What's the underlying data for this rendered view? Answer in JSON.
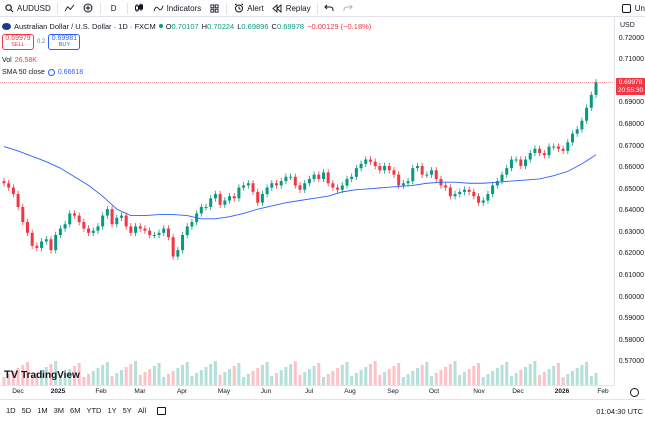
{
  "toolbar": {
    "symbol": "AUDUSD",
    "interval": "D",
    "indicators_label": "Indicators",
    "alert_label": "Alert",
    "replay_label": "Replay",
    "right_text": "Un"
  },
  "legend": {
    "title": "Australian Dollar / U.S. Dollar · 1D · FXCM",
    "open_k": "O",
    "open_v": "0.70107",
    "high_k": "H",
    "high_v": "0.70224",
    "low_k": "L",
    "low_v": "0.69896",
    "close_k": "C",
    "close_v": "0.69978",
    "change": "−0.00129 (−0.18%)",
    "sell_price": "0.69979",
    "sell_label": "SELL",
    "spread": "0.2",
    "buy_price": "0.69981",
    "buy_label": "BUY",
    "vol_label": "Vol",
    "vol_value": "26.58K",
    "sma_label": "SMA 50 close",
    "sma_value": "0.66618"
  },
  "price_axis": {
    "currency": "USD",
    "labels": [
      "0.72000",
      "0.71000",
      "0.70000",
      "0.69000",
      "0.68000",
      "0.67000",
      "0.66000",
      "0.65000",
      "0.64000",
      "0.63000",
      "0.62000",
      "0.61000",
      "0.60000",
      "0.59000",
      "0.58000",
      "0.57000"
    ],
    "last_price": "0.69978",
    "countdown": "20:55:30"
  },
  "time_axis": {
    "labels": [
      "Dec",
      "2025",
      "Feb",
      "Mar",
      "Apr",
      "May",
      "Jun",
      "Jul",
      "Aug",
      "Sep",
      "Oct",
      "Nov",
      "Dec",
      "2026",
      "Feb"
    ]
  },
  "bottom_bar": {
    "ranges": [
      "1D",
      "5D",
      "1M",
      "3M",
      "6M",
      "YTD",
      "1Y",
      "5Y",
      "All"
    ],
    "clock": "01:04:30 UTC"
  },
  "branding": {
    "logo_text": "TradingView"
  },
  "colors": {
    "up": "#089981",
    "down": "#f23645",
    "sma": "#2962ff",
    "accent": "#2962ff"
  },
  "chart_data": {
    "type": "line",
    "series": [
      {
        "name": "SMA 50 close",
        "values": [
          0.67,
          0.668,
          0.6655,
          0.663,
          0.66,
          0.656,
          0.652,
          0.647,
          0.641,
          0.638,
          0.638,
          0.6385,
          0.6385,
          0.638,
          0.6365,
          0.6365,
          0.6375,
          0.639,
          0.641,
          0.6425,
          0.644,
          0.645,
          0.646,
          0.647,
          0.649,
          0.65,
          0.6505,
          0.651,
          0.6515,
          0.652,
          0.653,
          0.6535,
          0.6535,
          0.653,
          0.653,
          0.6535,
          0.654,
          0.6545,
          0.655,
          0.6565,
          0.6585,
          0.662,
          0.6662
        ]
      }
    ],
    "close": [
      0.653,
      0.651,
      0.648,
      0.642,
      0.635,
      0.63,
      0.624,
      0.623,
      0.626,
      0.627,
      0.622,
      0.629,
      0.632,
      0.634,
      0.639,
      0.638,
      0.635,
      0.632,
      0.63,
      0.631,
      0.633,
      0.638,
      0.641,
      0.634,
      0.637,
      0.638,
      0.633,
      0.63,
      0.633,
      0.632,
      0.631,
      0.629,
      0.629,
      0.63,
      0.632,
      0.628,
      0.619,
      0.622,
      0.629,
      0.633,
      0.635,
      0.639,
      0.642,
      0.642,
      0.646,
      0.648,
      0.643,
      0.645,
      0.647,
      0.646,
      0.651,
      0.652,
      0.653,
      0.649,
      0.644,
      0.648,
      0.651,
      0.653,
      0.652,
      0.654,
      0.656,
      0.656,
      0.652,
      0.65,
      0.653,
      0.655,
      0.657,
      0.655,
      0.658,
      0.653,
      0.651,
      0.65,
      0.652,
      0.655,
      0.656,
      0.66,
      0.662,
      0.664,
      0.663,
      0.661,
      0.659,
      0.661,
      0.659,
      0.657,
      0.652,
      0.653,
      0.654,
      0.66,
      0.661,
      0.657,
      0.657,
      0.659,
      0.655,
      0.652,
      0.651,
      0.647,
      0.648,
      0.649,
      0.65,
      0.649,
      0.647,
      0.644,
      0.645,
      0.648,
      0.652,
      0.654,
      0.657,
      0.66,
      0.664,
      0.664,
      0.661,
      0.664,
      0.667,
      0.669,
      0.667,
      0.666,
      0.67,
      0.67,
      0.669,
      0.668,
      0.672,
      0.676,
      0.678,
      0.682,
      0.688,
      0.694,
      0.6998
    ],
    "ylim": [
      0.565,
      0.725
    ],
    "xlabel": "",
    "ylabel": "USD"
  }
}
